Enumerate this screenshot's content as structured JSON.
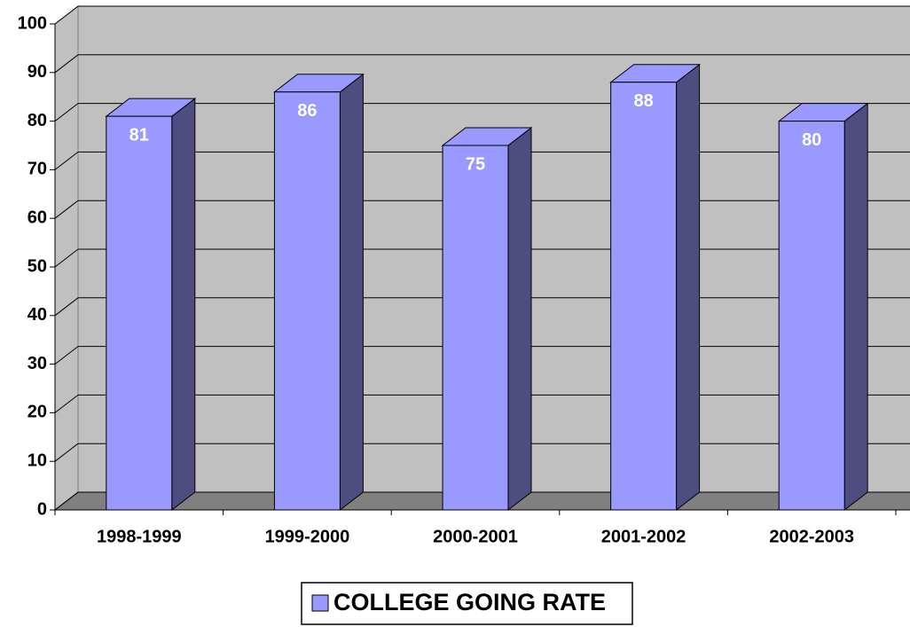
{
  "chart_data": {
    "type": "bar3d",
    "categories": [
      "1998-1999",
      "1999-2000",
      "2000-2001",
      "2001-2002",
      "2002-2003"
    ],
    "series": [
      {
        "name": "COLLEGE GOING RATE",
        "color": "#9999ff",
        "values": [
          81,
          86,
          75,
          88,
          80
        ]
      }
    ],
    "ylim": [
      0,
      100
    ],
    "yticks": [
      0,
      10,
      20,
      30,
      40,
      50,
      60,
      70,
      80,
      90,
      100
    ],
    "grid": true,
    "legend": "bottom"
  }
}
